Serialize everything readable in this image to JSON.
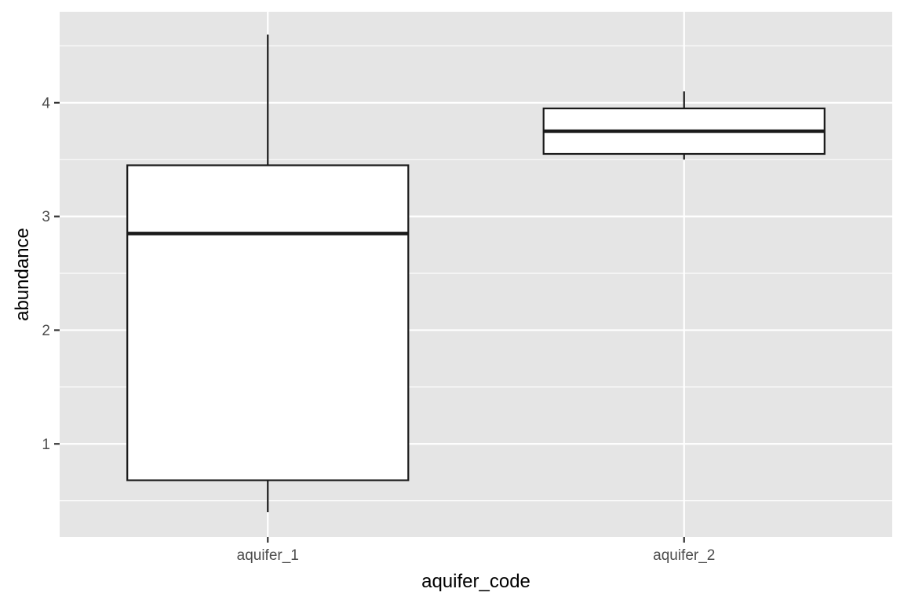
{
  "chart_data": {
    "type": "boxplot",
    "title": "",
    "xlabel": "aquifer_code",
    "ylabel": "abundance",
    "categories": [
      "aquifer_1",
      "aquifer_2"
    ],
    "boxes": [
      {
        "category": "aquifer_1",
        "whisker_low": 0.4,
        "q1": 0.68,
        "median": 2.85,
        "q3": 3.45,
        "whisker_high": 4.6
      },
      {
        "category": "aquifer_2",
        "whisker_low": 3.5,
        "q1": 3.55,
        "median": 3.75,
        "q3": 3.95,
        "whisker_high": 4.1
      }
    ],
    "ylim": [
      0.18,
      4.8
    ],
    "y_ticks": [
      1,
      2,
      3,
      4
    ],
    "y_tick_labels": [
      "1",
      "2",
      "3",
      "4"
    ],
    "y_minor_ticks": [
      0.5,
      1.5,
      2.5,
      3.5,
      4.5
    ],
    "grid": true,
    "legend": "none",
    "colors": {
      "panel_background": "#e5e5e5",
      "grid_line": "#ffffff",
      "box_fill": "#ffffff",
      "box_stroke": "#1a1a1a",
      "tick_label": "#4d4d4d",
      "axis_title": "#000000"
    }
  }
}
